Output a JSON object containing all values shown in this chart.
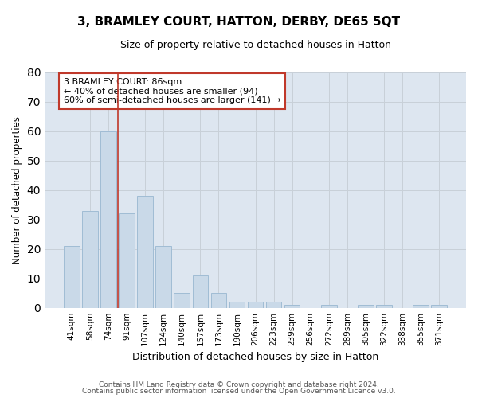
{
  "title": "3, BRAMLEY COURT, HATTON, DERBY, DE65 5QT",
  "subtitle": "Size of property relative to detached houses in Hatton",
  "xlabel": "Distribution of detached houses by size in Hatton",
  "ylabel": "Number of detached properties",
  "bar_labels": [
    "41sqm",
    "58sqm",
    "74sqm",
    "91sqm",
    "107sqm",
    "124sqm",
    "140sqm",
    "157sqm",
    "173sqm",
    "190sqm",
    "206sqm",
    "223sqm",
    "239sqm",
    "256sqm",
    "272sqm",
    "289sqm",
    "305sqm",
    "322sqm",
    "338sqm",
    "355sqm",
    "371sqm"
  ],
  "bar_values": [
    21,
    33,
    60,
    32,
    38,
    21,
    5,
    11,
    5,
    2,
    2,
    2,
    1,
    0,
    1,
    0,
    1,
    1,
    0,
    1,
    1
  ],
  "bar_color": "#c9d9e8",
  "bar_edge_color": "#a0bcd4",
  "grid_color": "#c8d0d8",
  "background_color": "#dde6f0",
  "vline_color": "#c0392b",
  "vline_x": 2.5,
  "annotation_text": "3 BRAMLEY COURT: 86sqm\n← 40% of detached houses are smaller (94)\n60% of semi-detached houses are larger (141) →",
  "annotation_box_color": "white",
  "annotation_box_edge": "#c0392b",
  "ylim": [
    0,
    80
  ],
  "yticks": [
    0,
    10,
    20,
    30,
    40,
    50,
    60,
    70,
    80
  ],
  "footer_line1": "Contains HM Land Registry data © Crown copyright and database right 2024.",
  "footer_line2": "Contains public sector information licensed under the Open Government Licence v3.0."
}
